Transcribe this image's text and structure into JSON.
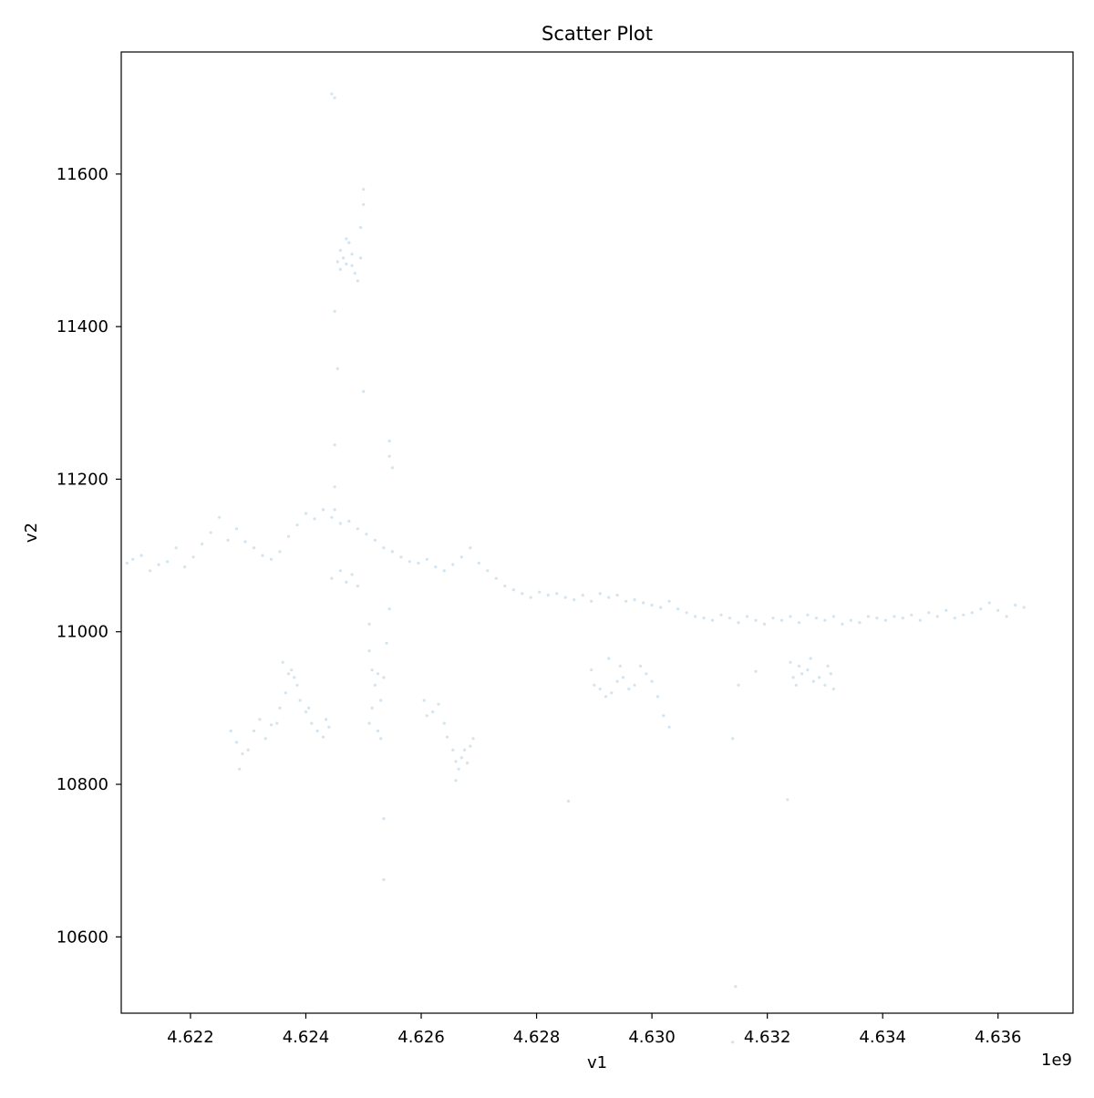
{
  "chart_data": {
    "type": "scatter",
    "title": "Scatter Plot",
    "xlabel": "v1",
    "ylabel": "v2",
    "x_offset_label": "1e9",
    "xlim": [
      4620800000,
      4637300000
    ],
    "ylim": [
      10500,
      11760
    ],
    "x_ticks": [
      4622000000,
      4624000000,
      4626000000,
      4628000000,
      4630000000,
      4632000000,
      4634000000,
      4636000000
    ],
    "x_tick_labels": [
      "4.622",
      "4.624",
      "4.626",
      "4.628",
      "4.630",
      "4.632",
      "4.634",
      "4.636"
    ],
    "y_ticks": [
      10600,
      10800,
      11000,
      11200,
      11400,
      11600
    ],
    "y_tick_labels": [
      "10600",
      "10800",
      "11000",
      "11200",
      "11400",
      "11600"
    ],
    "grid": false,
    "legend": "none",
    "marker_color": "#1f77b4",
    "marker_alpha": 0.2,
    "series": [
      {
        "points": [
          [
            4620900000,
            11090
          ],
          [
            4621000000,
            11095
          ],
          [
            4621150000,
            11100
          ],
          [
            4621300000,
            11080
          ],
          [
            4621450000,
            11088
          ],
          [
            4621600000,
            11092
          ],
          [
            4621750000,
            11110
          ],
          [
            4621900000,
            11085
          ],
          [
            4622050000,
            11098
          ],
          [
            4622200000,
            11115
          ],
          [
            4622350000,
            11130
          ],
          [
            4622500000,
            11150
          ],
          [
            4622650000,
            11120
          ],
          [
            4622800000,
            11135
          ],
          [
            4622950000,
            11118
          ],
          [
            4623100000,
            11110
          ],
          [
            4623250000,
            11100
          ],
          [
            4623400000,
            11095
          ],
          [
            4623550000,
            11105
          ],
          [
            4623700000,
            11125
          ],
          [
            4623850000,
            11140
          ],
          [
            4624000000,
            11155
          ],
          [
            4624150000,
            11148
          ],
          [
            4624300000,
            11160
          ],
          [
            4624450000,
            11150
          ],
          [
            4624600000,
            11142
          ],
          [
            4624750000,
            11145
          ],
          [
            4624900000,
            11135
          ],
          [
            4625050000,
            11128
          ],
          [
            4625200000,
            11120
          ],
          [
            4625350000,
            11110
          ],
          [
            4625500000,
            11105
          ],
          [
            4625650000,
            11098
          ],
          [
            4625800000,
            11092
          ],
          [
            4625950000,
            11090
          ],
          [
            4626100000,
            11095
          ],
          [
            4626250000,
            11085
          ],
          [
            4626400000,
            11080
          ],
          [
            4626550000,
            11088
          ],
          [
            4626700000,
            11098
          ],
          [
            4626850000,
            11110
          ],
          [
            4627000000,
            11090
          ],
          [
            4627150000,
            11080
          ],
          [
            4627300000,
            11070
          ],
          [
            4627450000,
            11060
          ],
          [
            4627600000,
            11055
          ],
          [
            4627750000,
            11050
          ],
          [
            4627900000,
            11045
          ],
          [
            4628050000,
            11052
          ],
          [
            4628200000,
            11048
          ],
          [
            4628350000,
            11050
          ],
          [
            4628500000,
            11045
          ],
          [
            4628650000,
            11042
          ],
          [
            4628800000,
            11048
          ],
          [
            4628950000,
            11040
          ],
          [
            4629100000,
            11050
          ],
          [
            4629250000,
            11045
          ],
          [
            4629400000,
            11048
          ],
          [
            4629550000,
            11040
          ],
          [
            4629700000,
            11042
          ],
          [
            4629850000,
            11038
          ],
          [
            4630000000,
            11035
          ],
          [
            4630150000,
            11032
          ],
          [
            4630300000,
            11040
          ],
          [
            4630450000,
            11030
          ],
          [
            4630600000,
            11025
          ],
          [
            4630750000,
            11020
          ],
          [
            4630900000,
            11018
          ],
          [
            4631050000,
            11015
          ],
          [
            4631200000,
            11022
          ],
          [
            4631350000,
            11018
          ],
          [
            4631500000,
            11012
          ],
          [
            4631650000,
            11020
          ],
          [
            4631800000,
            11015
          ],
          [
            4631950000,
            11010
          ],
          [
            4632100000,
            11018
          ],
          [
            4632250000,
            11015
          ],
          [
            4632400000,
            11020
          ],
          [
            4632550000,
            11012
          ],
          [
            4632700000,
            11022
          ],
          [
            4632850000,
            11018
          ],
          [
            4633000000,
            11015
          ],
          [
            4633150000,
            11020
          ],
          [
            4633300000,
            11010
          ],
          [
            4633450000,
            11015
          ],
          [
            4633600000,
            11012
          ],
          [
            4633750000,
            11020
          ],
          [
            4633900000,
            11018
          ],
          [
            4634050000,
            11015
          ],
          [
            4634200000,
            11020
          ],
          [
            4634350000,
            11018
          ],
          [
            4634500000,
            11022
          ],
          [
            4634650000,
            11015
          ],
          [
            4634800000,
            11025
          ],
          [
            4634950000,
            11020
          ],
          [
            4635100000,
            11028
          ],
          [
            4635250000,
            11018
          ],
          [
            4635400000,
            11022
          ],
          [
            4635550000,
            11025
          ],
          [
            4635700000,
            11030
          ],
          [
            4635850000,
            11038
          ],
          [
            4636000000,
            11028
          ],
          [
            4636150000,
            11020
          ],
          [
            4636300000,
            11035
          ],
          [
            4636450000,
            11032
          ],
          [
            4624500000,
            11700
          ],
          [
            4624450000,
            11705
          ],
          [
            4625000000,
            11580
          ],
          [
            4625000000,
            11560
          ],
          [
            4624950000,
            11530
          ],
          [
            4624550000,
            11485
          ],
          [
            4624600000,
            11500
          ],
          [
            4624650000,
            11490
          ],
          [
            4624700000,
            11515
          ],
          [
            4624750000,
            11510
          ],
          [
            4624800000,
            11480
          ],
          [
            4624850000,
            11470
          ],
          [
            4624900000,
            11460
          ],
          [
            4624950000,
            11490
          ],
          [
            4624600000,
            11475
          ],
          [
            4624700000,
            11482
          ],
          [
            4624800000,
            11495
          ],
          [
            4624500000,
            11420
          ],
          [
            4624550000,
            11345
          ],
          [
            4625000000,
            11315
          ],
          [
            4624500000,
            11245
          ],
          [
            4625450000,
            11250
          ],
          [
            4625450000,
            11230
          ],
          [
            4625500000,
            11215
          ],
          [
            4624500000,
            11190
          ],
          [
            4624500000,
            11160
          ],
          [
            4624600000,
            11080
          ],
          [
            4624700000,
            11065
          ],
          [
            4624800000,
            11075
          ],
          [
            4624900000,
            11060
          ],
          [
            4624450000,
            11070
          ],
          [
            4622700000,
            10870
          ],
          [
            4622800000,
            10855
          ],
          [
            4622900000,
            10840
          ],
          [
            4622850000,
            10820
          ],
          [
            4623000000,
            10845
          ],
          [
            4623100000,
            10870
          ],
          [
            4623200000,
            10885
          ],
          [
            4623300000,
            10860
          ],
          [
            4623400000,
            10878
          ],
          [
            4623500000,
            10880
          ],
          [
            4623550000,
            10900
          ],
          [
            4623650000,
            10920
          ],
          [
            4623700000,
            10945
          ],
          [
            4623800000,
            10940
          ],
          [
            4623850000,
            10930
          ],
          [
            4623900000,
            10910
          ],
          [
            4624000000,
            10895
          ],
          [
            4624100000,
            10880
          ],
          [
            4624200000,
            10870
          ],
          [
            4624300000,
            10862
          ],
          [
            4624350000,
            10885
          ],
          [
            4624400000,
            10875
          ],
          [
            4623600000,
            10960
          ],
          [
            4623750000,
            10950
          ],
          [
            4624050000,
            10900
          ],
          [
            4625100000,
            11010
          ],
          [
            4625100000,
            10975
          ],
          [
            4625150000,
            10950
          ],
          [
            4625200000,
            10930
          ],
          [
            4625250000,
            10945
          ],
          [
            4625300000,
            10910
          ],
          [
            4625350000,
            10940
          ],
          [
            4625400000,
            10985
          ],
          [
            4625150000,
            10900
          ],
          [
            4625100000,
            10880
          ],
          [
            4625250000,
            10870
          ],
          [
            4625300000,
            10860
          ],
          [
            4625450000,
            11030
          ],
          [
            4625350000,
            10755
          ],
          [
            4625350000,
            10675
          ],
          [
            4626050000,
            10910
          ],
          [
            4626100000,
            10890
          ],
          [
            4626200000,
            10895
          ],
          [
            4626300000,
            10905
          ],
          [
            4626400000,
            10880
          ],
          [
            4626450000,
            10862
          ],
          [
            4626550000,
            10845
          ],
          [
            4626600000,
            10830
          ],
          [
            4626650000,
            10820
          ],
          [
            4626700000,
            10835
          ],
          [
            4626750000,
            10845
          ],
          [
            4626800000,
            10828
          ],
          [
            4626850000,
            10850
          ],
          [
            4626900000,
            10860
          ],
          [
            4626600000,
            10805
          ],
          [
            4628550000,
            10778
          ],
          [
            4628950000,
            10950
          ],
          [
            4629000000,
            10930
          ],
          [
            4629100000,
            10925
          ],
          [
            4629200000,
            10915
          ],
          [
            4629300000,
            10920
          ],
          [
            4629400000,
            10935
          ],
          [
            4629500000,
            10940
          ],
          [
            4629600000,
            10925
          ],
          [
            4629700000,
            10930
          ],
          [
            4629800000,
            10955
          ],
          [
            4629900000,
            10945
          ],
          [
            4630000000,
            10935
          ],
          [
            4630100000,
            10915
          ],
          [
            4630200000,
            10890
          ],
          [
            4630300000,
            10875
          ],
          [
            4629250000,
            10965
          ],
          [
            4629450000,
            10955
          ],
          [
            4631400000,
            10860
          ],
          [
            4631500000,
            10930
          ],
          [
            4631800000,
            10948
          ],
          [
            4632350000,
            10780
          ],
          [
            4631450000,
            10535
          ],
          [
            4631400000,
            10462
          ],
          [
            4632400000,
            10960
          ],
          [
            4632450000,
            10940
          ],
          [
            4632500000,
            10930
          ],
          [
            4632600000,
            10945
          ],
          [
            4632700000,
            10950
          ],
          [
            4632800000,
            10935
          ],
          [
            4632900000,
            10940
          ],
          [
            4633000000,
            10930
          ],
          [
            4633100000,
            10945
          ],
          [
            4633150000,
            10925
          ],
          [
            4632750000,
            10965
          ],
          [
            4632550000,
            10955
          ],
          [
            4633050000,
            10955
          ]
        ]
      }
    ]
  }
}
